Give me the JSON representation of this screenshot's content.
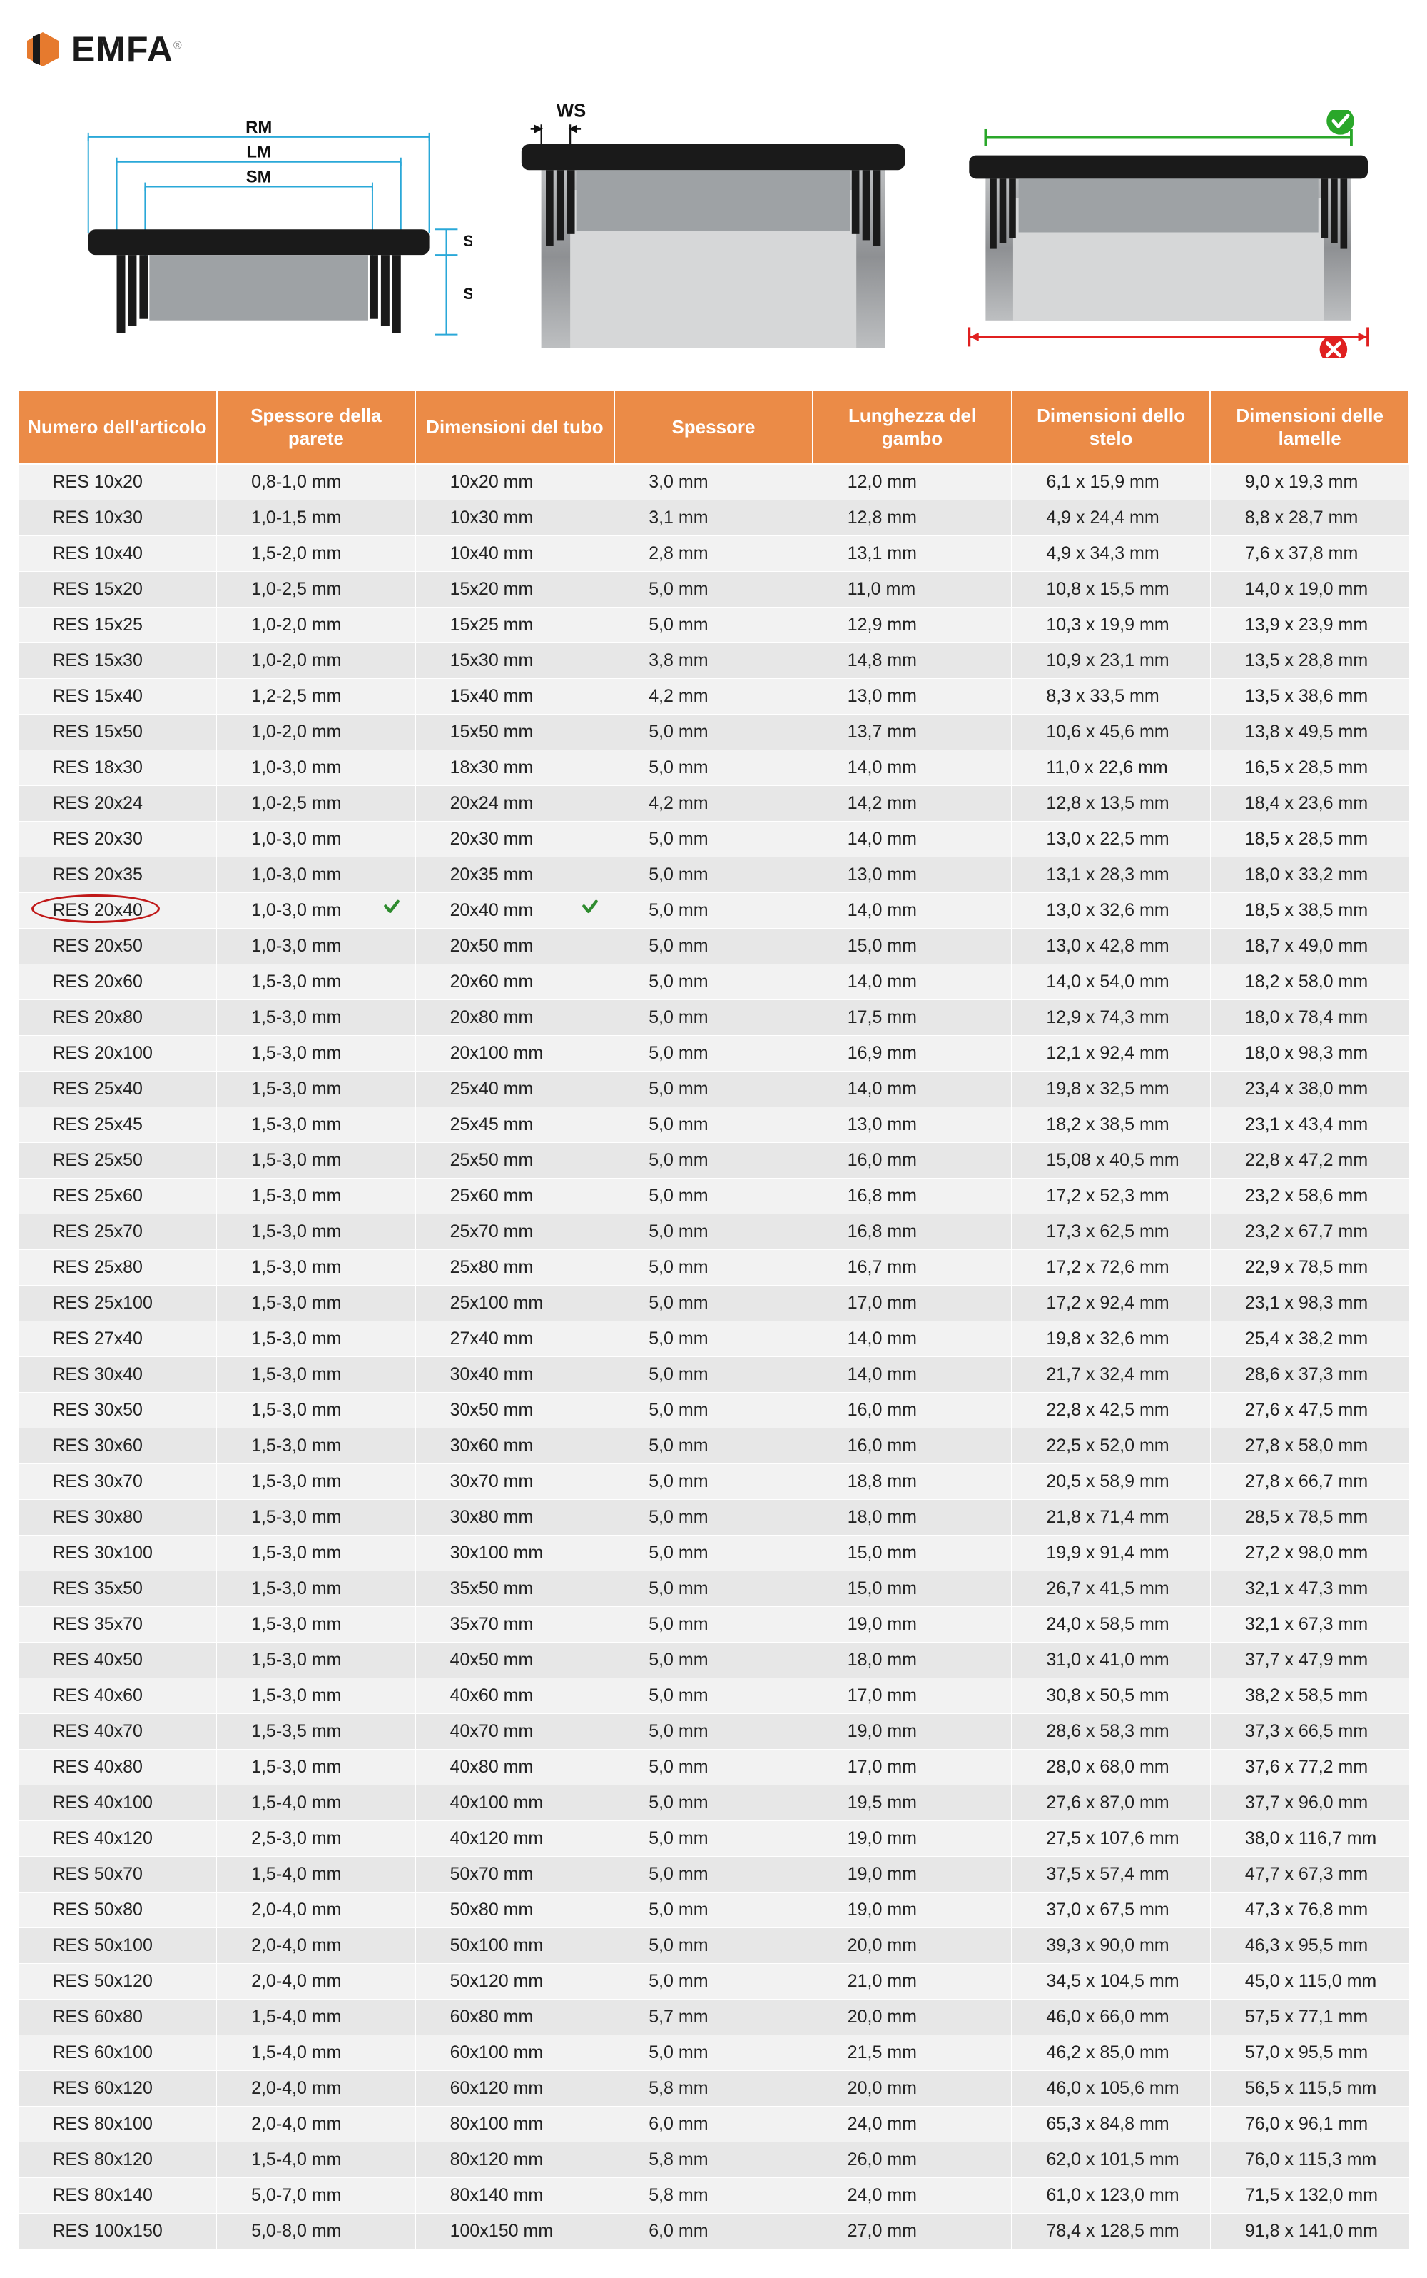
{
  "brand": {
    "name": "EMFA",
    "registered": "®"
  },
  "diagram_labels": {
    "rm": "RM",
    "lm": "LM",
    "sm": "SM",
    "sk": "SK",
    "se": "SE",
    "ws": "WS"
  },
  "colors": {
    "header_bg": "#eb8b47",
    "header_text": "#ffffff",
    "row_odd": "#f2f2f2",
    "row_even": "#e7e7e7",
    "text": "#222222",
    "highlight_ring": "#c01818",
    "check_green": "#2e8b2e",
    "ok_green": "#2aa72a",
    "no_red": "#e02020",
    "dim_blue": "#2aa8d8",
    "plug_black": "#1a1a1a",
    "tube_grey": "#9ea2a5"
  },
  "table": {
    "columns": [
      "Numero dell'articolo",
      "Spessore della parete",
      "Dimensioni del tubo",
      "Spessore",
      "Lunghezza del gambo",
      "Dimensioni dello stelo",
      "Dimensioni delle lamelle"
    ],
    "highlight_row_index": 11,
    "highlight_checks_on_cols": [
      1,
      2
    ],
    "rows": [
      [
        "RES 10x20",
        "0,8-1,0 mm",
        "10x20 mm",
        "3,0 mm",
        "12,0 mm",
        "6,1 x 15,9 mm",
        "9,0 x 19,3 mm"
      ],
      [
        "RES 10x30",
        "1,0-1,5 mm",
        "10x30 mm",
        "3,1 mm",
        "12,8 mm",
        "4,9 x 24,4 mm",
        "8,8 x 28,7 mm"
      ],
      [
        "RES 10x40",
        "1,5-2,0 mm",
        "10x40 mm",
        "2,8 mm",
        "13,1 mm",
        "4,9 x 34,3 mm",
        "7,6 x 37,8 mm"
      ],
      [
        "RES 15x20",
        "1,0-2,5 mm",
        "15x20 mm",
        "5,0 mm",
        "11,0 mm",
        "10,8 x 15,5 mm",
        "14,0 x 19,0 mm"
      ],
      [
        "RES 15x25",
        "1,0-2,0 mm",
        "15x25 mm",
        "5,0 mm",
        "12,9 mm",
        "10,3 x 19,9 mm",
        "13,9 x 23,9 mm"
      ],
      [
        "RES 15x30",
        "1,0-2,0 mm",
        "15x30 mm",
        "3,8 mm",
        "14,8 mm",
        "10,9 x 23,1 mm",
        "13,5 x 28,8 mm"
      ],
      [
        "RES 15x40",
        "1,2-2,5 mm",
        "15x40 mm",
        "4,2 mm",
        "13,0 mm",
        "8,3 x 33,5 mm",
        "13,5 x 38,6 mm"
      ],
      [
        "RES 15x50",
        "1,0-2,0 mm",
        "15x50 mm",
        "5,0 mm",
        "13,7 mm",
        "10,6 x 45,6 mm",
        "13,8 x 49,5 mm"
      ],
      [
        "RES 18x30",
        "1,0-3,0 mm",
        "18x30 mm",
        "5,0 mm",
        "14,0 mm",
        "11,0 x 22,6 mm",
        "16,5 x 28,5 mm"
      ],
      [
        "RES 20x24",
        "1,0-2,5 mm",
        "20x24 mm",
        "4,2 mm",
        "14,2 mm",
        "12,8 x 13,5 mm",
        "18,4 x 23,6 mm"
      ],
      [
        "RES 20x30",
        "1,0-3,0 mm",
        "20x30 mm",
        "5,0 mm",
        "14,0 mm",
        "13,0 x 22,5 mm",
        "18,5 x 28,5 mm"
      ],
      [
        "RES 20x35",
        "1,0-3,0 mm",
        "20x35 mm",
        "5,0 mm",
        "13,0 mm",
        "13,1 x 28,3 mm",
        "18,0 x 33,2 mm"
      ],
      [
        "RES 20x40",
        "1,0-3,0 mm",
        "20x40 mm",
        "5,0 mm",
        "14,0 mm",
        "13,0 x 32,6 mm",
        "18,5 x 38,5 mm"
      ],
      [
        "RES 20x50",
        "1,0-3,0 mm",
        "20x50 mm",
        "5,0 mm",
        "15,0 mm",
        "13,0 x 42,8 mm",
        "18,7 x 49,0 mm"
      ],
      [
        "RES 20x60",
        "1,5-3,0 mm",
        "20x60 mm",
        "5,0 mm",
        "14,0 mm",
        "14,0 x 54,0 mm",
        "18,2 x 58,0 mm"
      ],
      [
        "RES 20x80",
        "1,5-3,0 mm",
        "20x80 mm",
        "5,0 mm",
        "17,5 mm",
        "12,9 x 74,3 mm",
        "18,0 x 78,4 mm"
      ],
      [
        "RES 20x100",
        "1,5-3,0 mm",
        "20x100 mm",
        "5,0 mm",
        "16,9 mm",
        "12,1 x 92,4 mm",
        "18,0 x 98,3 mm"
      ],
      [
        "RES 25x40",
        "1,5-3,0 mm",
        "25x40 mm",
        "5,0 mm",
        "14,0 mm",
        "19,8 x 32,5 mm",
        "23,4 x 38,0 mm"
      ],
      [
        "RES 25x45",
        "1,5-3,0 mm",
        "25x45 mm",
        "5,0 mm",
        "13,0 mm",
        "18,2 x 38,5 mm",
        "23,1 x 43,4 mm"
      ],
      [
        "RES 25x50",
        "1,5-3,0 mm",
        "25x50 mm",
        "5,0 mm",
        "16,0 mm",
        "15,08 x 40,5 mm",
        "22,8 x 47,2 mm"
      ],
      [
        "RES 25x60",
        "1,5-3,0 mm",
        "25x60 mm",
        "5,0 mm",
        "16,8 mm",
        "17,2 x 52,3 mm",
        "23,2 x 58,6 mm"
      ],
      [
        "RES 25x70",
        "1,5-3,0 mm",
        "25x70 mm",
        "5,0 mm",
        "16,8 mm",
        "17,3 x 62,5 mm",
        "23,2 x 67,7 mm"
      ],
      [
        "RES 25x80",
        "1,5-3,0 mm",
        "25x80 mm",
        "5,0 mm",
        "16,7 mm",
        "17,2 x 72,6 mm",
        "22,9 x 78,5 mm"
      ],
      [
        "RES 25x100",
        "1,5-3,0 mm",
        "25x100 mm",
        "5,0 mm",
        "17,0 mm",
        "17,2 x 92,4 mm",
        "23,1 x 98,3 mm"
      ],
      [
        "RES 27x40",
        "1,5-3,0 mm",
        "27x40 mm",
        "5,0 mm",
        "14,0 mm",
        "19,8 x 32,6 mm",
        "25,4 x 38,2 mm"
      ],
      [
        "RES 30x40",
        "1,5-3,0 mm",
        "30x40 mm",
        "5,0 mm",
        "14,0 mm",
        "21,7 x 32,4 mm",
        "28,6 x 37,3 mm"
      ],
      [
        "RES 30x50",
        "1,5-3,0 mm",
        "30x50 mm",
        "5,0 mm",
        "16,0 mm",
        "22,8 x 42,5 mm",
        "27,6 x 47,5 mm"
      ],
      [
        "RES 30x60",
        "1,5-3,0 mm",
        "30x60 mm",
        "5,0 mm",
        "16,0 mm",
        "22,5 x 52,0 mm",
        "27,8 x 58,0 mm"
      ],
      [
        "RES 30x70",
        "1,5-3,0 mm",
        "30x70 mm",
        "5,0 mm",
        "18,8 mm",
        "20,5 x 58,9 mm",
        "27,8 x 66,7 mm"
      ],
      [
        "RES 30x80",
        "1,5-3,0 mm",
        "30x80 mm",
        "5,0 mm",
        "18,0 mm",
        "21,8 x 71,4 mm",
        "28,5 x 78,5 mm"
      ],
      [
        "RES 30x100",
        "1,5-3,0 mm",
        "30x100 mm",
        "5,0 mm",
        "15,0 mm",
        "19,9 x 91,4 mm",
        "27,2 x 98,0 mm"
      ],
      [
        "RES 35x50",
        "1,5-3,0 mm",
        "35x50 mm",
        "5,0 mm",
        "15,0 mm",
        "26,7 x 41,5 mm",
        "32,1 x 47,3 mm"
      ],
      [
        "RES 35x70",
        "1,5-3,0 mm",
        "35x70 mm",
        "5,0 mm",
        "19,0 mm",
        "24,0 x 58,5 mm",
        "32,1 x 67,3 mm"
      ],
      [
        "RES 40x50",
        "1,5-3,0 mm",
        "40x50 mm",
        "5,0 mm",
        "18,0 mm",
        "31,0 x 41,0 mm",
        "37,7 x 47,9 mm"
      ],
      [
        "RES 40x60",
        "1,5-3,0 mm",
        "40x60 mm",
        "5,0 mm",
        "17,0 mm",
        "30,8 x 50,5 mm",
        "38,2 x 58,5 mm"
      ],
      [
        "RES 40x70",
        "1,5-3,5 mm",
        "40x70 mm",
        "5,0 mm",
        "19,0 mm",
        "28,6 x 58,3 mm",
        "37,3 x 66,5 mm"
      ],
      [
        "RES 40x80",
        "1,5-3,0 mm",
        "40x80 mm",
        "5,0 mm",
        "17,0 mm",
        "28,0 x 68,0 mm",
        "37,6 x 77,2 mm"
      ],
      [
        "RES 40x100",
        "1,5-4,0 mm",
        "40x100 mm",
        "5,0 mm",
        "19,5 mm",
        "27,6 x 87,0 mm",
        "37,7 x 96,0 mm"
      ],
      [
        "RES 40x120",
        "2,5-3,0 mm",
        "40x120 mm",
        "5,0 mm",
        "19,0 mm",
        "27,5 x 107,6 mm",
        "38,0 x 116,7 mm"
      ],
      [
        "RES 50x70",
        "1,5-4,0 mm",
        "50x70 mm",
        "5,0 mm",
        "19,0 mm",
        "37,5 x 57,4 mm",
        "47,7 x 67,3 mm"
      ],
      [
        "RES 50x80",
        "2,0-4,0 mm",
        "50x80 mm",
        "5,0 mm",
        "19,0 mm",
        "37,0 x 67,5 mm",
        "47,3 x 76,8 mm"
      ],
      [
        "RES 50x100",
        "2,0-4,0 mm",
        "50x100 mm",
        "5,0 mm",
        "20,0 mm",
        "39,3 x 90,0 mm",
        "46,3 x 95,5 mm"
      ],
      [
        "RES 50x120",
        "2,0-4,0 mm",
        "50x120 mm",
        "5,0 mm",
        "21,0 mm",
        "34,5 x 104,5 mm",
        "45,0 x 115,0 mm"
      ],
      [
        "RES 60x80",
        "1,5-4,0 mm",
        "60x80 mm",
        "5,7 mm",
        "20,0 mm",
        "46,0 x 66,0 mm",
        "57,5 x 77,1 mm"
      ],
      [
        "RES 60x100",
        "1,5-4,0 mm",
        "60x100 mm",
        "5,0 mm",
        "21,5 mm",
        "46,2 x 85,0 mm",
        "57,0 x 95,5 mm"
      ],
      [
        "RES 60x120",
        "2,0-4,0 mm",
        "60x120 mm",
        "5,8 mm",
        "20,0 mm",
        "46,0 x 105,6 mm",
        "56,5 x 115,5 mm"
      ],
      [
        "RES 80x100",
        "2,0-4,0 mm",
        "80x100 mm",
        "6,0 mm",
        "24,0 mm",
        "65,3 x 84,8 mm",
        "76,0 x 96,1 mm"
      ],
      [
        "RES 80x120",
        "1,5-4,0 mm",
        "80x120 mm",
        "5,8 mm",
        "26,0 mm",
        "62,0 x 101,5 mm",
        "76,0 x 115,3 mm"
      ],
      [
        "RES 80x140",
        "5,0-7,0 mm",
        "80x140 mm",
        "5,8 mm",
        "24,0 mm",
        "61,0 x 123,0 mm",
        "71,5 x 132,0 mm"
      ],
      [
        "RES 100x150",
        "5,0-8,0 mm",
        "100x150 mm",
        "6,0 mm",
        "27,0 mm",
        "78,4 x 128,5 mm",
        "91,8 x 141,0 mm"
      ]
    ]
  }
}
